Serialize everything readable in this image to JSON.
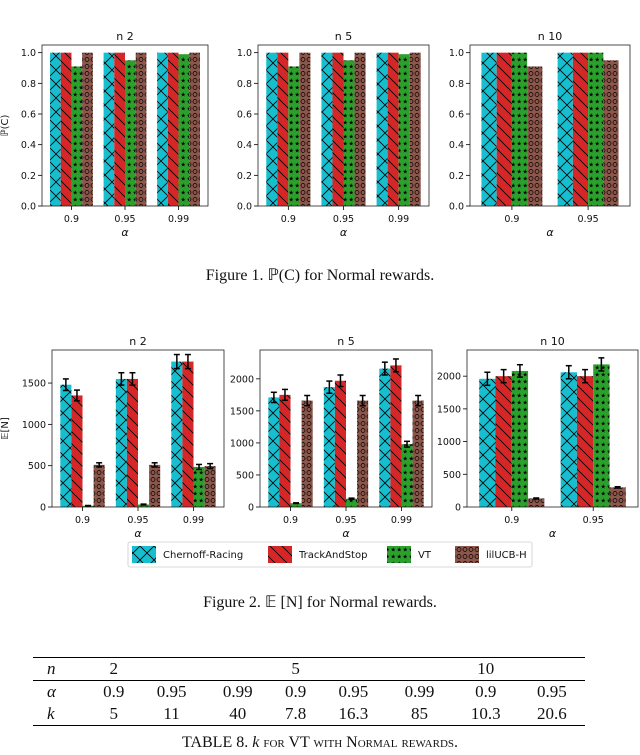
{
  "figure1": {
    "caption": "Figure 1. ℙ(C) for Normal rewards."
  },
  "figure2": {
    "caption": "Figure 2. 𝔼 [N] for Normal rewards."
  },
  "legend": [
    {
      "name": "Chernoff-Racing",
      "color": "#17becf",
      "pattern": "cross"
    },
    {
      "name": "TrackAndStop",
      "color": "#d62728",
      "pattern": "backslash"
    },
    {
      "name": "VT",
      "color": "#2ca02c",
      "pattern": "stars"
    },
    {
      "name": "lilUCB-H",
      "color": "#8c564b",
      "pattern": "circles"
    }
  ],
  "chart_data": [
    {
      "type": "bar",
      "title": "Figure 1",
      "ylabel": "ℙ(C)",
      "xlabel": "α",
      "yticks": [
        "0.0",
        "0.2",
        "0.4",
        "0.6",
        "0.8",
        "1.0"
      ],
      "ylim": [
        0,
        1.05
      ],
      "panels": [
        {
          "title": "n 2",
          "categories": [
            "0.9",
            "0.95",
            "0.99"
          ],
          "series": [
            {
              "name": "Chernoff-Racing",
              "values": [
                1.0,
                1.0,
                1.0
              ]
            },
            {
              "name": "TrackAndStop",
              "values": [
                1.0,
                1.0,
                1.0
              ]
            },
            {
              "name": "VT",
              "values": [
                0.91,
                0.95,
                0.99
              ]
            },
            {
              "name": "lilUCB-H",
              "values": [
                1.0,
                1.0,
                1.0
              ]
            }
          ]
        },
        {
          "title": "n 5",
          "categories": [
            "0.9",
            "0.95",
            "0.99"
          ],
          "series": [
            {
              "name": "Chernoff-Racing",
              "values": [
                1.0,
                1.0,
                1.0
              ]
            },
            {
              "name": "TrackAndStop",
              "values": [
                1.0,
                1.0,
                1.0
              ]
            },
            {
              "name": "VT",
              "values": [
                0.91,
                0.95,
                0.99
              ]
            },
            {
              "name": "lilUCB-H",
              "values": [
                1.0,
                1.0,
                1.0
              ]
            }
          ]
        },
        {
          "title": "n 10",
          "categories": [
            "0.9",
            "0.95"
          ],
          "series": [
            {
              "name": "Chernoff-Racing",
              "values": [
                1.0,
                1.0
              ]
            },
            {
              "name": "TrackAndStop",
              "values": [
                1.0,
                1.0
              ]
            },
            {
              "name": "VT",
              "values": [
                1.0,
                1.0
              ]
            },
            {
              "name": "lilUCB-H",
              "values": [
                0.91,
                0.95
              ]
            }
          ]
        }
      ]
    },
    {
      "type": "bar",
      "title": "Figure 2",
      "ylabel": "𝔼[N]",
      "xlabel": "α",
      "panels": [
        {
          "title": "n 2",
          "categories": [
            "0.9",
            "0.95",
            "0.99"
          ],
          "ylim": [
            0,
            1900
          ],
          "yticks": [
            "0",
            "500",
            "1000",
            "1500"
          ],
          "series": [
            {
              "name": "Chernoff-Racing",
              "values": [
                1480,
                1550,
                1760
              ],
              "err": [
                70,
                75,
                85
              ]
            },
            {
              "name": "TrackAndStop",
              "values": [
                1350,
                1550,
                1760
              ],
              "err": [
                65,
                75,
                85
              ]
            },
            {
              "name": "VT",
              "values": [
                15,
                30,
                485
              ],
              "err": [
                3,
                5,
                30
              ]
            },
            {
              "name": "lilUCB-H",
              "values": [
                510,
                510,
                495
              ],
              "err": [
                25,
                25,
                30
              ]
            }
          ]
        },
        {
          "title": "n 5",
          "categories": [
            "0.9",
            "0.95",
            "0.99"
          ],
          "ylim": [
            0,
            2450
          ],
          "yticks": [
            "0",
            "500",
            "1000",
            "1500",
            "2000"
          ],
          "series": [
            {
              "name": "Chernoff-Racing",
              "values": [
                1710,
                1870,
                2160
              ],
              "err": [
                80,
                95,
                100
              ]
            },
            {
              "name": "TrackAndStop",
              "values": [
                1750,
                1970,
                2210
              ],
              "err": [
                85,
                90,
                100
              ]
            },
            {
              "name": "VT",
              "values": [
                60,
                130,
                980
              ],
              "err": [
                5,
                8,
                45
              ]
            },
            {
              "name": "lilUCB-H",
              "values": [
                1660,
                1660,
                1660
              ],
              "err": [
                80,
                80,
                80
              ]
            }
          ]
        },
        {
          "title": "n 10",
          "categories": [
            "0.9",
            "0.95"
          ],
          "ylim": [
            0,
            2400
          ],
          "yticks": [
            "0",
            "500",
            "1000",
            "1500",
            "2000"
          ],
          "series": [
            {
              "name": "Chernoff-Racing",
              "values": [
                1960,
                2060
              ],
              "err": [
                100,
                100
              ]
            },
            {
              "name": "TrackAndStop",
              "values": [
                2000,
                2000
              ],
              "err": [
                100,
                100
              ]
            },
            {
              "name": "VT",
              "values": [
                2080,
                2180
              ],
              "err": [
                95,
                100
              ]
            },
            {
              "name": "lilUCB-H",
              "values": [
                130,
                300
              ],
              "err": [
                8,
                10
              ]
            }
          ]
        }
      ]
    }
  ],
  "table8": {
    "rows": [
      {
        "header": "n",
        "cells": [
          "2",
          "",
          "",
          "5",
          "",
          "",
          "10",
          ""
        ]
      },
      {
        "header": "α",
        "cells": [
          "0.9",
          "0.95",
          "0.99",
          "0.9",
          "0.95",
          "0.99",
          "0.9",
          "0.95"
        ]
      },
      {
        "header": "k",
        "cells": [
          "5",
          "11",
          "40",
          "7.8",
          "16.3",
          "85",
          "10.3",
          "20.6"
        ]
      }
    ],
    "caption_prefix": "TABLE 8. ",
    "caption_k": "k",
    "caption_rest": " for VT with Normal rewards."
  }
}
